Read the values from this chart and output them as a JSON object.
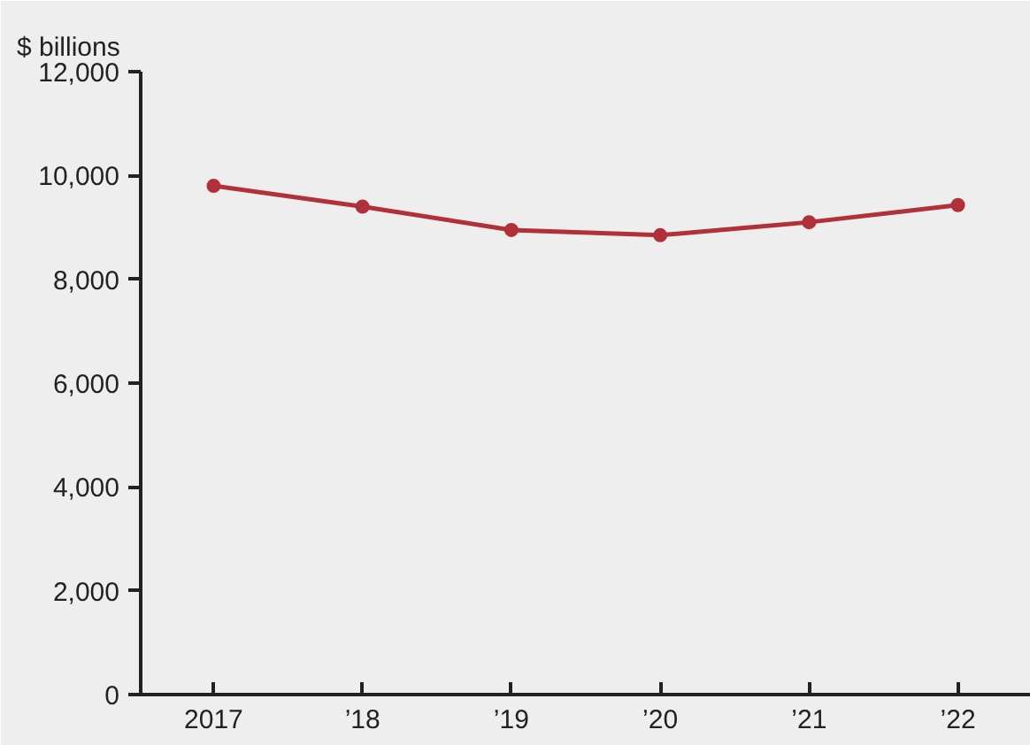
{
  "chart_data": {
    "type": "line",
    "ylabel": "$ billions",
    "categories": [
      "2017",
      "’18",
      "’19",
      "’20",
      "’21",
      "’22"
    ],
    "series": [
      {
        "color": "#b0313a",
        "values": [
          9800,
          9400,
          8950,
          8850,
          9100,
          9430
        ]
      }
    ],
    "ylim": [
      0,
      12000
    ],
    "yticks": [
      0,
      {
        "value": 2000,
        "label": "2,000"
      },
      {
        "value": 4000,
        "label": "4,000"
      },
      {
        "value": 6000,
        "label": "6,000"
      },
      {
        "value": 8000,
        "label": "8,000"
      },
      {
        "value": 10000,
        "label": "10,000"
      },
      {
        "value": 12000,
        "label": "12,000"
      }
    ],
    "marker": "circle",
    "line_style": "solid",
    "grid": false
  }
}
